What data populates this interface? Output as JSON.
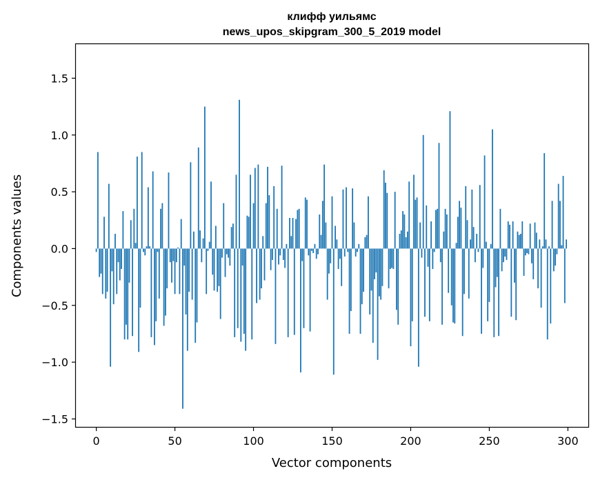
{
  "chart_data": {
    "type": "bar",
    "title": "клифф уильямс",
    "subtitle": "news_upos_skipgram_300_5_2019 model",
    "xlabel": "Vector components",
    "ylabel": "Components values",
    "xlim": [
      -13,
      313
    ],
    "ylim": [
      -1.57,
      1.8
    ],
    "xticks": [
      0,
      50,
      100,
      150,
      200,
      250,
      300
    ],
    "yticks": [
      -1.5,
      -1.0,
      -0.5,
      0.0,
      0.5,
      1.0,
      1.5
    ],
    "ytick_labels": [
      "−1.5",
      "−1.0",
      "−0.5",
      "0.0",
      "0.5",
      "1.0",
      "1.5"
    ],
    "bar_color": "#1f77b4",
    "grid": false,
    "values": [
      -0.03,
      0.85,
      -0.25,
      -0.22,
      -0.4,
      0.28,
      -0.44,
      -0.38,
      0.57,
      -1.04,
      -0.2,
      -0.49,
      0.13,
      -0.4,
      -0.12,
      -0.28,
      -0.18,
      0.33,
      -0.8,
      -0.67,
      -0.8,
      -0.3,
      0.25,
      -0.77,
      0.35,
      0.05,
      0.81,
      -0.91,
      -0.52,
      0.85,
      -0.03,
      -0.06,
      0.02,
      0.54,
      0.02,
      -0.78,
      0.68,
      -0.85,
      -0.64,
      -0.03,
      -0.44,
      0.35,
      0.4,
      -0.68,
      -0.59,
      -0.35,
      0.67,
      -0.12,
      -0.3,
      -0.11,
      -0.4,
      -0.12,
      0.01,
      -0.4,
      0.26,
      -1.41,
      -0.15,
      -0.58,
      -0.9,
      -0.38,
      0.76,
      -0.45,
      0.15,
      -0.83,
      -0.65,
      0.89,
      0.16,
      -0.12,
      0.09,
      1.25,
      -0.4,
      -0.02,
      0.06,
      0.59,
      -0.23,
      -0.37,
      0.2,
      -0.38,
      -0.33,
      -0.62,
      -0.08,
      0.4,
      -0.25,
      -0.05,
      -0.08,
      -0.15,
      0.19,
      0.22,
      -0.78,
      0.65,
      -0.7,
      1.31,
      -0.82,
      -0.15,
      -0.75,
      -0.9,
      0.29,
      0.28,
      0.65,
      -0.8,
      0.4,
      0.71,
      -0.48,
      0.74,
      -0.45,
      -0.35,
      0.11,
      -0.28,
      0.4,
      0.72,
      0.47,
      -0.19,
      -0.1,
      0.55,
      -0.84,
      0.35,
      -0.14,
      -0.06,
      0.73,
      -0.1,
      -0.17,
      0.04,
      -0.78,
      0.27,
      0.11,
      0.27,
      -0.76,
      0.26,
      0.34,
      0.35,
      -1.09,
      -0.11,
      -0.7,
      0.45,
      0.43,
      -0.06,
      -0.73,
      -0.02,
      -0.04,
      0.04,
      -0.09,
      -0.05,
      0.3,
      0.12,
      0.42,
      0.74,
      0.23,
      -0.45,
      -0.22,
      -0.13,
      0.46,
      -1.11,
      0.2,
      0.08,
      -0.18,
      -0.09,
      -0.33,
      0.52,
      -0.07,
      0.54,
      -0.03,
      -0.75,
      -0.55,
      0.53,
      0.23,
      -0.07,
      -0.03,
      0.04,
      -0.75,
      -0.49,
      -0.38,
      0.1,
      0.12,
      0.46,
      -0.58,
      -0.37,
      -0.83,
      -0.27,
      -0.21,
      -0.98,
      -0.42,
      -0.45,
      -0.33,
      0.69,
      0.58,
      0.49,
      -0.35,
      -0.18,
      -0.17,
      -0.18,
      0.5,
      -0.54,
      -0.67,
      0.13,
      0.16,
      0.33,
      0.3,
      0.1,
      0.15,
      0.59,
      -0.86,
      -0.64,
      0.65,
      0.43,
      0.45,
      -1.04,
      0.23,
      -0.08,
      1.0,
      -0.6,
      0.38,
      -0.16,
      -0.64,
      0.24,
      -0.18,
      -0.03,
      0.34,
      0.35,
      0.93,
      -0.12,
      -0.67,
      0.15,
      0.35,
      0.3,
      -0.39,
      1.21,
      -0.5,
      -0.65,
      -0.66,
      0.05,
      0.28,
      0.42,
      0.36,
      -0.77,
      -0.4,
      0.55,
      0.25,
      -0.44,
      0.08,
      0.52,
      0.19,
      -0.12,
      0.13,
      -0.03,
      0.56,
      -0.75,
      -0.17,
      0.82,
      0.06,
      -0.64,
      -0.47,
      0.04,
      1.05,
      -0.78,
      -0.34,
      -0.25,
      -0.77,
      0.35,
      -0.2,
      -0.12,
      -0.07,
      -0.1,
      0.24,
      0.21,
      -0.6,
      0.24,
      -0.3,
      -0.63,
      0.15,
      0.12,
      0.13,
      0.24,
      -0.24,
      -0.06,
      -0.04,
      -0.05,
      0.22,
      -0.13,
      -0.27,
      0.23,
      0.14,
      -0.35,
      0.08,
      -0.52,
      0.02,
      0.84,
      0.08,
      -0.8,
      0.02,
      -0.66,
      0.42,
      -0.2,
      -0.15,
      -0.05,
      0.57,
      0.42,
      0.03,
      0.64,
      -0.48,
      0.08
    ]
  }
}
